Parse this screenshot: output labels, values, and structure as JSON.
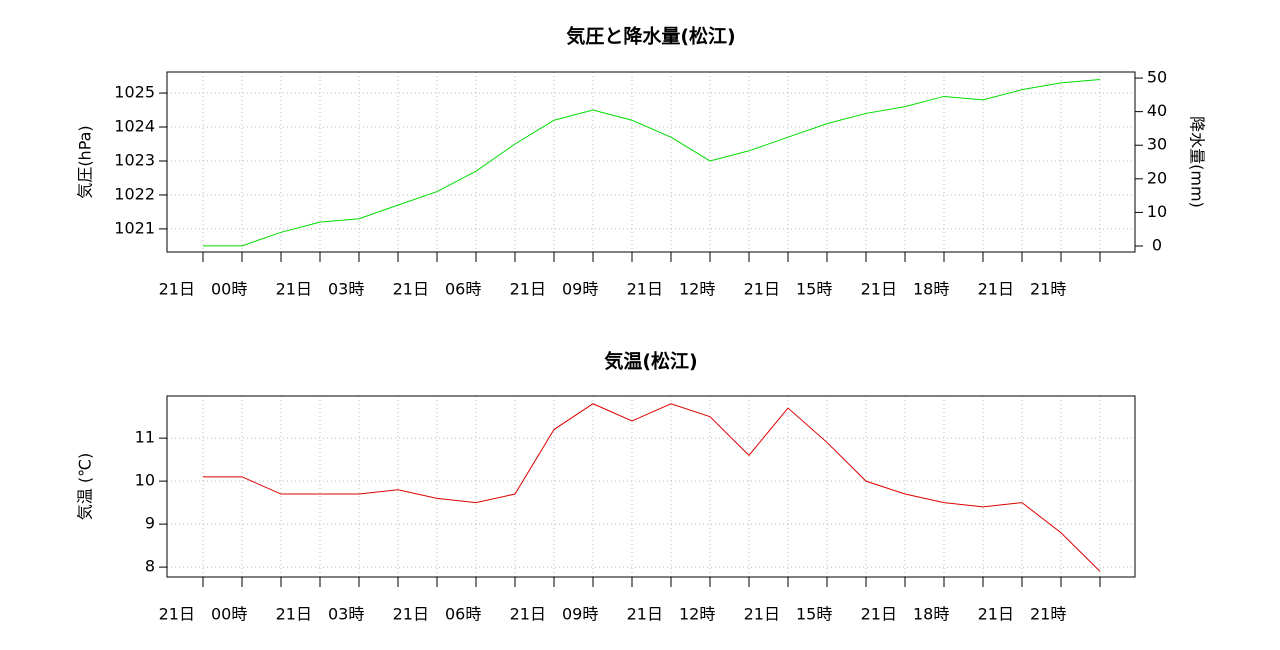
{
  "chart_data": [
    {
      "type": "line",
      "title": "気圧と降水量(松江)",
      "categories": [
        "21日　00時",
        null,
        null,
        "21日　03時",
        null,
        null,
        "21日　06時",
        null,
        null,
        "21日　09時",
        null,
        null,
        "21日　12時",
        null,
        null,
        "21日　15時",
        null,
        null,
        "21日　18時",
        null,
        null,
        "21日　21時",
        null,
        null
      ],
      "series": [
        {
          "color": "#00dd00",
          "values": [
            1020.5,
            1020.5,
            1020.9,
            1021.2,
            1021.3,
            1021.7,
            1022.1,
            1022.7,
            1023.5,
            1024.2,
            1024.5,
            1024.2,
            1023.7,
            1023.0,
            1023.3,
            1023.7,
            1024.1,
            1024.4,
            1024.6,
            1024.9,
            1024.8,
            1025.1,
            1025.3,
            1025.4
          ]
        }
      ],
      "ylabel": "気圧(hPa)",
      "ylim": [
        1020.32,
        1025.62
      ],
      "yticks": [
        1021,
        1022,
        1023,
        1024,
        1025
      ],
      "y2label": "降水量(mm)",
      "y2lim": [
        -1.79,
        51.8
      ],
      "y2ticks": [
        0,
        10,
        20,
        30,
        40,
        50
      ],
      "grid": true
    },
    {
      "type": "line",
      "title": "気温(松江)",
      "categories": [
        "21日　00時",
        null,
        null,
        "21日　03時",
        null,
        null,
        "21日　06時",
        null,
        null,
        "21日　09時",
        null,
        null,
        "21日　12時",
        null,
        null,
        "21日　15時",
        null,
        null,
        "21日　18時",
        null,
        null,
        "21日　21時",
        null,
        null
      ],
      "series": [
        {
          "color": "#dd0000",
          "values": [
            10.1,
            10.1,
            9.7,
            9.7,
            9.7,
            9.8,
            9.6,
            9.5,
            9.7,
            11.2,
            11.8,
            11.4,
            11.8,
            11.5,
            10.6,
            11.7,
            10.9,
            10.0,
            9.7,
            9.5,
            9.4,
            9.5,
            8.8,
            7.9
          ]
        }
      ],
      "ylabel": "気温 (℃)",
      "ylim": [
        7.77,
        11.98
      ],
      "yticks": [
        8,
        9,
        10,
        11
      ],
      "grid": true
    }
  ]
}
